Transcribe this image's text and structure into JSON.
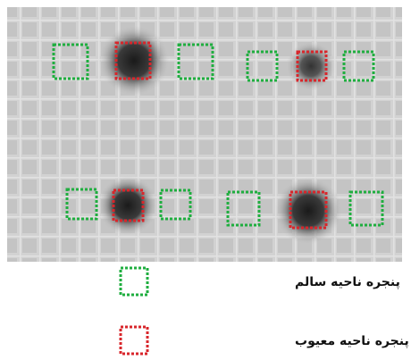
{
  "legend": {
    "items": [
      {
        "label": "پنجره ناحیه سالم"
      },
      {
        "label": "پنجره ناحیه معیوب"
      }
    ]
  }
}
